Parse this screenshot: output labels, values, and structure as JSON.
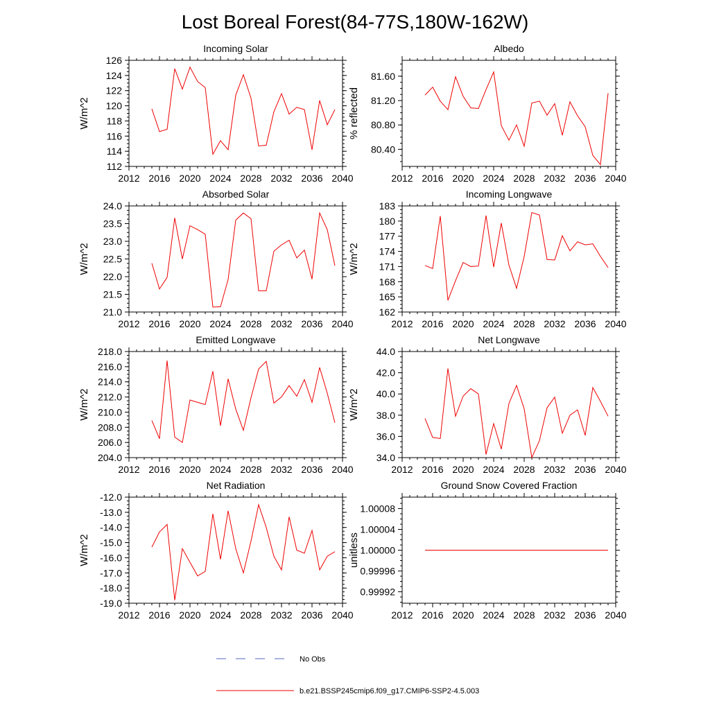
{
  "figure": {
    "title": "Lost Boreal Forest(84-77S,180W-162W)"
  },
  "legend": {
    "obs_label": "No Obs",
    "model_label": "b.e21.BSSP245cmip6.f09_g17.CMIP6-SSP2-4.5.003",
    "obs_color": "#5566bb",
    "model_color": "#ee0000"
  },
  "chart_data": [
    {
      "type": "line",
      "title": "Incoming Solar",
      "ylabel": "W/m^2",
      "xlim": [
        2012,
        2040
      ],
      "ylim": [
        112,
        126
      ],
      "xticks": [
        2012,
        2016,
        2020,
        2024,
        2028,
        2032,
        2036,
        2040
      ],
      "yticks": [
        112,
        114,
        116,
        118,
        120,
        122,
        124,
        126
      ],
      "ytick_labels": [
        "112",
        "114",
        "116",
        "118",
        "120",
        "122",
        "124",
        "126"
      ],
      "x": [
        2015,
        2016,
        2017,
        2018,
        2019,
        2020,
        2021,
        2022,
        2023,
        2024,
        2025,
        2026,
        2027,
        2028,
        2029,
        2030,
        2031,
        2032,
        2033,
        2034,
        2035,
        2036,
        2037,
        2038,
        2039
      ],
      "series": [
        {
          "name": "b.e21.BSSP245cmip6.f09_g17.CMIP6-SSP2-4.5.003",
          "values": [
            119.6,
            116.6,
            116.9,
            124.9,
            122.2,
            125.1,
            123.2,
            122.4,
            113.6,
            115.4,
            114.2,
            121.4,
            124.1,
            121.0,
            114.7,
            114.8,
            119.2,
            121.6,
            118.9,
            119.8,
            119.5,
            114.2,
            120.7,
            117.5,
            119.5
          ]
        }
      ]
    },
    {
      "type": "line",
      "title": "Albedo",
      "ylabel": "% reflected",
      "xlim": [
        2012,
        2040
      ],
      "ylim": [
        80.12,
        81.86
      ],
      "xticks": [
        2012,
        2016,
        2020,
        2024,
        2028,
        2032,
        2036,
        2040
      ],
      "yticks": [
        80.4,
        80.8,
        81.2,
        81.6
      ],
      "ytick_labels": [
        "80.40",
        "80.80",
        "81.20",
        "81.60"
      ],
      "x": [
        2015,
        2016,
        2017,
        2018,
        2019,
        2020,
        2021,
        2022,
        2023,
        2024,
        2025,
        2026,
        2027,
        2028,
        2029,
        2030,
        2031,
        2032,
        2033,
        2034,
        2035,
        2036,
        2037,
        2038,
        2039
      ],
      "series": [
        {
          "name": "b.e21.BSSP245cmip6.f09_g17.CMIP6-SSP2-4.5.003",
          "values": [
            81.29,
            81.42,
            81.19,
            81.05,
            81.59,
            81.27,
            81.08,
            81.07,
            81.38,
            81.67,
            80.79,
            80.55,
            80.8,
            80.45,
            81.16,
            81.19,
            80.96,
            81.15,
            80.63,
            81.18,
            80.95,
            80.77,
            80.3,
            80.15,
            81.32
          ]
        }
      ]
    },
    {
      "type": "line",
      "title": "Absorbed Solar",
      "ylabel": "W/m^2",
      "xlim": [
        2012,
        2040
      ],
      "ylim": [
        21.0,
        24.0
      ],
      "xticks": [
        2012,
        2016,
        2020,
        2024,
        2028,
        2032,
        2036,
        2040
      ],
      "yticks": [
        21.0,
        21.5,
        22.0,
        22.5,
        23.0,
        23.5,
        24.0
      ],
      "ytick_labels": [
        "21.0",
        "21.5",
        "22.0",
        "22.5",
        "23.0",
        "23.5",
        "24.0"
      ],
      "x": [
        2015,
        2016,
        2017,
        2018,
        2019,
        2020,
        2021,
        2022,
        2023,
        2024,
        2025,
        2026,
        2027,
        2028,
        2029,
        2030,
        2031,
        2032,
        2033,
        2034,
        2035,
        2036,
        2037,
        2038,
        2039
      ],
      "series": [
        {
          "name": "b.e21.BSSP245cmip6.f09_g17.CMIP6-SSP2-4.5.003",
          "values": [
            22.38,
            21.65,
            21.98,
            23.66,
            22.5,
            23.44,
            23.33,
            23.2,
            21.14,
            21.15,
            21.92,
            23.6,
            23.8,
            23.64,
            21.6,
            21.6,
            22.72,
            22.9,
            23.03,
            22.53,
            22.75,
            21.93,
            23.8,
            23.33,
            22.31
          ]
        }
      ]
    },
    {
      "type": "line",
      "title": "Incoming Longwave",
      "ylabel": "W/m^2",
      "xlim": [
        2012,
        2040
      ],
      "ylim": [
        162,
        183
      ],
      "xticks": [
        2012,
        2016,
        2020,
        2024,
        2028,
        2032,
        2036,
        2040
      ],
      "yticks": [
        162,
        165,
        168,
        171,
        174,
        177,
        180,
        183
      ],
      "ytick_labels": [
        "162",
        "165",
        "168",
        "171",
        "174",
        "177",
        "180",
        "183"
      ],
      "x": [
        2015,
        2016,
        2017,
        2018,
        2019,
        2020,
        2021,
        2022,
        2023,
        2024,
        2025,
        2026,
        2027,
        2028,
        2029,
        2030,
        2031,
        2032,
        2033,
        2034,
        2035,
        2036,
        2037,
        2038,
        2039
      ],
      "series": [
        {
          "name": "b.e21.BSSP245cmip6.f09_g17.CMIP6-SSP2-4.5.003",
          "values": [
            171.2,
            170.6,
            181.0,
            164.3,
            168.2,
            171.8,
            171.0,
            171.1,
            181.1,
            170.9,
            179.6,
            171.3,
            166.7,
            173.0,
            181.7,
            181.2,
            172.4,
            172.3,
            177.1,
            174.1,
            175.9,
            175.3,
            175.5,
            173.0,
            170.8
          ]
        }
      ]
    },
    {
      "type": "line",
      "title": "Emitted Longwave",
      "ylabel": "W/m^2",
      "xlim": [
        2012,
        2040
      ],
      "ylim": [
        204.0,
        218.0
      ],
      "xticks": [
        2012,
        2016,
        2020,
        2024,
        2028,
        2032,
        2036,
        2040
      ],
      "yticks": [
        204,
        206,
        208,
        210,
        212,
        214,
        216,
        218
      ],
      "ytick_labels": [
        "204.0",
        "206.0",
        "208.0",
        "210.0",
        "212.0",
        "214.0",
        "216.0",
        "218.0"
      ],
      "x": [
        2015,
        2016,
        2017,
        2018,
        2019,
        2020,
        2021,
        2022,
        2023,
        2024,
        2025,
        2026,
        2027,
        2028,
        2029,
        2030,
        2031,
        2032,
        2033,
        2034,
        2035,
        2036,
        2037,
        2038,
        2039
      ],
      "series": [
        {
          "name": "b.e21.BSSP245cmip6.f09_g17.CMIP6-SSP2-4.5.003",
          "values": [
            208.9,
            206.5,
            216.8,
            206.7,
            206.0,
            211.6,
            211.3,
            211.0,
            215.4,
            208.2,
            214.4,
            210.4,
            207.6,
            211.9,
            215.7,
            216.7,
            211.2,
            212.0,
            213.5,
            212.1,
            214.3,
            211.3,
            215.9,
            212.5,
            208.6
          ]
        }
      ]
    },
    {
      "type": "line",
      "title": "Net Longwave",
      "ylabel": "W/m^2",
      "xlim": [
        2012,
        2040
      ],
      "ylim": [
        34.0,
        44.0
      ],
      "xticks": [
        2012,
        2016,
        2020,
        2024,
        2028,
        2032,
        2036,
        2040
      ],
      "yticks": [
        34,
        36,
        38,
        40,
        42,
        44
      ],
      "ytick_labels": [
        "34.0",
        "36.0",
        "38.0",
        "40.0",
        "42.0",
        "44.0"
      ],
      "x": [
        2015,
        2016,
        2017,
        2018,
        2019,
        2020,
        2021,
        2022,
        2023,
        2024,
        2025,
        2026,
        2027,
        2028,
        2029,
        2030,
        2031,
        2032,
        2033,
        2034,
        2035,
        2036,
        2037,
        2038,
        2039
      ],
      "series": [
        {
          "name": "b.e21.BSSP245cmip6.f09_g17.CMIP6-SSP2-4.5.003",
          "values": [
            37.7,
            35.9,
            35.8,
            42.4,
            37.9,
            39.8,
            40.5,
            40.0,
            34.3,
            37.2,
            34.8,
            39.1,
            40.8,
            38.6,
            34.0,
            35.6,
            38.7,
            39.7,
            36.3,
            38.0,
            38.5,
            36.1,
            40.6,
            39.3,
            37.9
          ]
        }
      ]
    },
    {
      "type": "line",
      "title": "Net Radiation",
      "ylabel": "W/m^2",
      "xlim": [
        2012,
        2040
      ],
      "ylim": [
        -19.0,
        -12.0
      ],
      "xticks": [
        2012,
        2016,
        2020,
        2024,
        2028,
        2032,
        2036,
        2040
      ],
      "yticks": [
        -19,
        -18,
        -17,
        -16,
        -15,
        -14,
        -13,
        -12
      ],
      "ytick_labels": [
        "-19.0",
        "-18.0",
        "-17.0",
        "-16.0",
        "-15.0",
        "-14.0",
        "-13.0",
        "-12.0"
      ],
      "x": [
        2015,
        2016,
        2017,
        2018,
        2019,
        2020,
        2021,
        2022,
        2023,
        2024,
        2025,
        2026,
        2027,
        2028,
        2029,
        2030,
        2031,
        2032,
        2033,
        2034,
        2035,
        2036,
        2037,
        2038,
        2039
      ],
      "series": [
        {
          "name": "b.e21.BSSP245cmip6.f09_g17.CMIP6-SSP2-4.5.003",
          "values": [
            -15.3,
            -14.3,
            -13.8,
            -18.8,
            -15.4,
            -16.3,
            -17.2,
            -16.9,
            -13.1,
            -16.1,
            -12.9,
            -15.4,
            -17.0,
            -14.9,
            -12.5,
            -14.0,
            -15.9,
            -16.8,
            -13.3,
            -15.5,
            -15.7,
            -14.2,
            -16.8,
            -15.9,
            -15.6
          ]
        }
      ]
    },
    {
      "type": "line",
      "title": "Ground Snow Covered Fraction",
      "ylabel": "unitless",
      "xlim": [
        2012,
        2040
      ],
      "ylim": [
        0.999898,
        1.000102
      ],
      "xticks": [
        2012,
        2016,
        2020,
        2024,
        2028,
        2032,
        2036,
        2040
      ],
      "yticks": [
        0.99992,
        0.99996,
        1.0,
        1.00004,
        1.00008
      ],
      "ytick_labels": [
        "0.99992",
        "0.99996",
        "1.00000",
        "1.00004",
        "1.00008"
      ],
      "x": [
        2015,
        2016,
        2017,
        2018,
        2019,
        2020,
        2021,
        2022,
        2023,
        2024,
        2025,
        2026,
        2027,
        2028,
        2029,
        2030,
        2031,
        2032,
        2033,
        2034,
        2035,
        2036,
        2037,
        2038,
        2039
      ],
      "series": [
        {
          "name": "b.e21.BSSP245cmip6.f09_g17.CMIP6-SSP2-4.5.003",
          "values": [
            1,
            1,
            1,
            1,
            1,
            1,
            1,
            1,
            1,
            1,
            1,
            1,
            1,
            1,
            1,
            1,
            1,
            1,
            1,
            1,
            1,
            1,
            1,
            1,
            1
          ]
        }
      ]
    }
  ]
}
